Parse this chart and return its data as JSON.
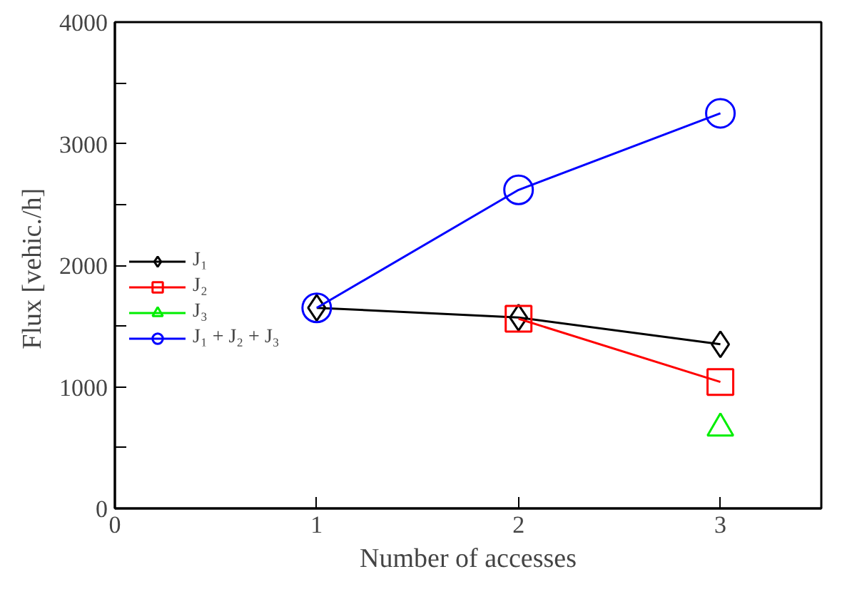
{
  "chart_data": {
    "type": "line",
    "xlabel": "Number of accesses",
    "ylabel": "Flux  [vehic./h]",
    "x": [
      1,
      2,
      3
    ],
    "series": [
      {
        "name": "J₁",
        "color": "#000000",
        "marker": "diamond",
        "values": [
          1650,
          1570,
          1350
        ]
      },
      {
        "name": "J₂",
        "color": "#ff0000",
        "marker": "square",
        "values": [
          null,
          1560,
          1040
        ]
      },
      {
        "name": "J₃",
        "color": "#00ee00",
        "marker": "triangle",
        "values": [
          null,
          null,
          660
        ]
      },
      {
        "name": "J₁ + J₂ + J₃",
        "color": "#0000ff",
        "marker": "circle",
        "values": [
          1650,
          2620,
          3250
        ]
      }
    ],
    "xlim": [
      0,
      3.5
    ],
    "xticks": [
      0,
      1,
      2,
      3
    ],
    "ylim": [
      0,
      4000
    ],
    "yticks": [
      0,
      {
        "value": 500,
        "label": null
      },
      1000,
      {
        "value": 1500,
        "label": null
      },
      2000,
      {
        "value": 2500,
        "label": null
      },
      3000,
      {
        "value": 3500,
        "label": null
      },
      4000
    ],
    "grid": false,
    "legend": "left",
    "line_style": "solid"
  }
}
